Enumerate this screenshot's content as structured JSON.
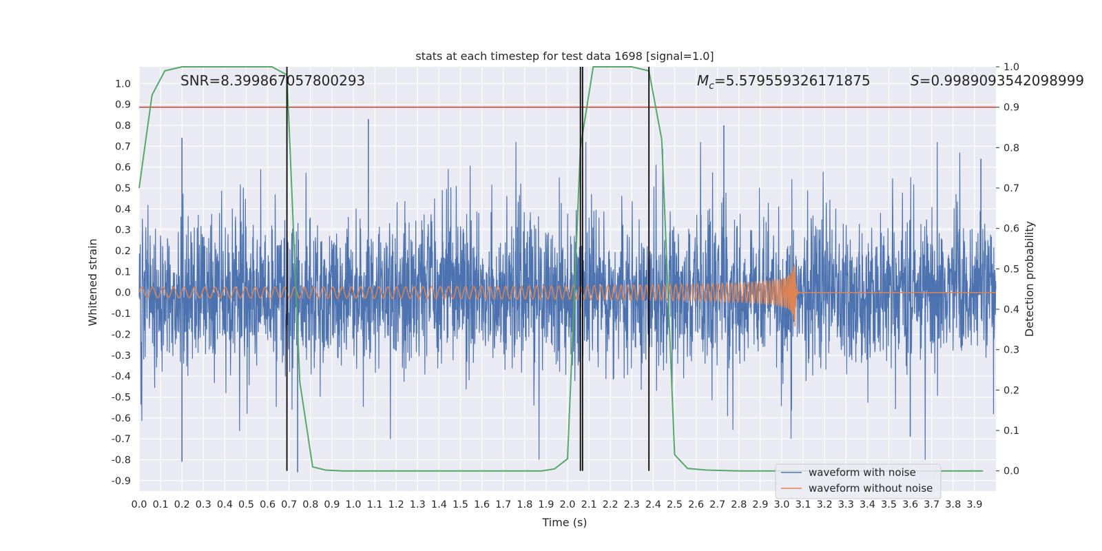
{
  "chart_data": {
    "type": "line",
    "title": "stats at each timestep for test data 1698 [signal=1.0]",
    "xlabel": "Time (s)",
    "ylabel": "Whitened strain",
    "y2label": "Detection probability",
    "xlim": [
      0,
      4
    ],
    "ylim": [
      -0.95,
      1.08
    ],
    "y2lim": [
      -0.05,
      1.0
    ],
    "x_ticks": [
      "0.0",
      "0.1",
      "0.2",
      "0.3",
      "0.4",
      "0.5",
      "0.6",
      "0.7",
      "0.8",
      "0.9",
      "1.0",
      "1.1",
      "1.2",
      "1.3",
      "1.4",
      "1.5",
      "1.6",
      "1.7",
      "1.8",
      "1.9",
      "2.0",
      "2.1",
      "2.2",
      "2.3",
      "2.4",
      "2.5",
      "2.6",
      "2.7",
      "2.8",
      "2.9",
      "3.0",
      "3.1",
      "3.2",
      "3.3",
      "3.4",
      "3.5",
      "3.6",
      "3.7",
      "3.8",
      "3.9"
    ],
    "y_ticks": [
      "1.0",
      "0.9",
      "0.8",
      "0.7",
      "0.6",
      "0.5",
      "0.4",
      "0.3",
      "0.2",
      "0.1",
      "0.0",
      "-0.1",
      "-0.2",
      "-0.3",
      "-0.4",
      "-0.5",
      "-0.6",
      "-0.7",
      "-0.8",
      "-0.9"
    ],
    "y2_ticks": [
      "1.0",
      "0.9",
      "0.8",
      "0.7",
      "0.6",
      "0.5",
      "0.4",
      "0.3",
      "0.2",
      "0.1",
      "0.0"
    ],
    "annotations": {
      "snr": "SNR=8.399867057800293",
      "mc_symbol": "M",
      "mc_sub": "c",
      "mc_value": "=5.579559326171875",
      "s_symbol": "S",
      "s_value": "=0.9989093542098999"
    },
    "threshold_line": {
      "axis": "y2",
      "value": 0.9,
      "color": "#c0392b"
    },
    "vertical_lines": [
      0.69,
      2.06,
      2.07,
      2.38
    ],
    "legend": {
      "placement": "bottom-right",
      "entries": [
        "waveform with noise",
        "waveform without noise"
      ]
    },
    "series": [
      {
        "name": "waveform with noise",
        "color": "#4c72b0",
        "description_type": "noise",
        "x_range": [
          0,
          4
        ],
        "peak_spikes": [
          [
            0.2,
            0.74
          ],
          [
            0.2,
            -0.81
          ],
          [
            1.07,
            0.83
          ],
          [
            2.73,
            0.8
          ],
          [
            0.74,
            -0.86
          ],
          [
            3.93,
            0.64
          ],
          [
            3.6,
            -0.69
          ]
        ]
      },
      {
        "name": "waveform without noise",
        "color": "#dd8452",
        "description_type": "chirp",
        "x_range": [
          0,
          4
        ],
        "merger_time": 3.06,
        "amplitude_start": 0.025,
        "amplitude_peak": 0.22
      },
      {
        "name": "",
        "color": "#55a868",
        "axis": "y2",
        "x": [
          0.0,
          0.06,
          0.12,
          0.2,
          0.3,
          0.4,
          0.5,
          0.62,
          0.69,
          0.75,
          0.81,
          0.87,
          0.95,
          1.1,
          1.3,
          1.5,
          1.7,
          1.88,
          1.94,
          2.0,
          2.06,
          2.12,
          2.2,
          2.3,
          2.38,
          2.44,
          2.5,
          2.56,
          2.65,
          2.8,
          3.0,
          3.2,
          3.5,
          3.8,
          3.94
        ],
        "y": [
          0.7,
          0.93,
          0.99,
          1.0,
          1.0,
          1.0,
          1.0,
          1.0,
          0.98,
          0.22,
          0.01,
          0.002,
          0.0,
          0.0,
          0.0,
          0.0,
          0.0,
          0.0,
          0.005,
          0.03,
          0.8,
          1.0,
          1.0,
          1.0,
          0.99,
          0.82,
          0.04,
          0.006,
          0.002,
          0.0,
          0.0,
          0.0,
          0.0,
          0.0,
          0.0
        ]
      }
    ]
  }
}
